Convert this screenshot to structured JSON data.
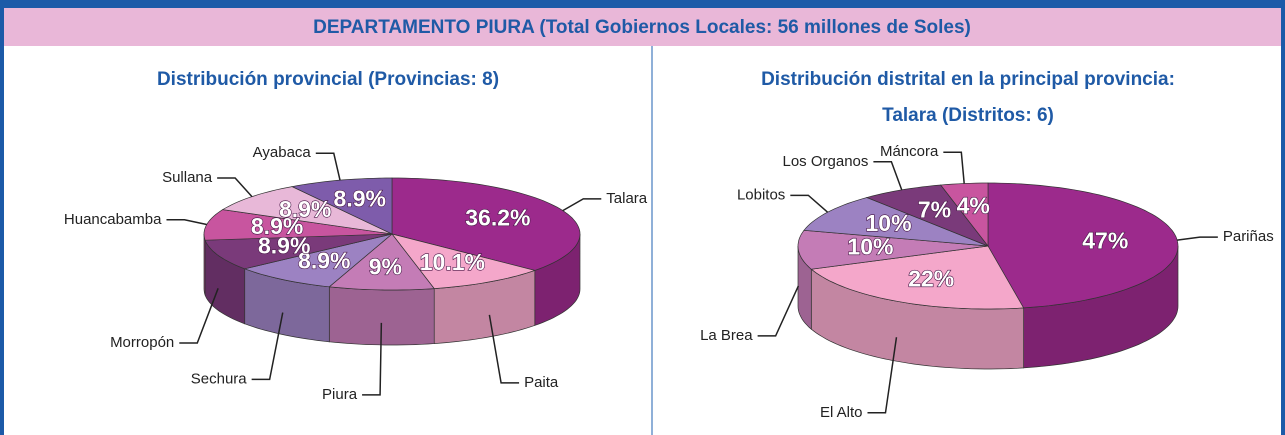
{
  "header": {
    "title": "DEPARTAMENTO PIURA (Total Gobiernos Locales: 56 millones de Soles)"
  },
  "chart_data": [
    {
      "type": "pie",
      "title": "Distribución provincial (Provincias: 8)",
      "categories": [
        "Talara",
        "Paita",
        "Piura",
        "Sechura",
        "Morropón",
        "Huancabamba",
        "Sullana",
        "Ayabaca"
      ],
      "values": [
        36.2,
        10.1,
        9,
        8.9,
        8.9,
        8.9,
        8.9,
        8.9
      ],
      "value_labels": [
        "36.2%",
        "10.1%",
        "9%",
        "8.9%",
        "8.9%",
        "8.9%",
        "8.9%",
        "8.9%"
      ],
      "colors": [
        "#9c2a8c",
        "#f4a7ca",
        "#c47cb6",
        "#9c82c2",
        "#7a3a7a",
        "#c8559f",
        "#e8b8d8",
        "#7e5cab"
      ]
    },
    {
      "type": "pie",
      "title": "Distribución distrital en la principal provincia:",
      "subtitle": "Talara (Distritos: 6)",
      "categories": [
        "Pariñas",
        "El Alto",
        "La Brea",
        "Lobitos",
        "Los Organos",
        "Máncora"
      ],
      "values": [
        47,
        22,
        10,
        10,
        7,
        4
      ],
      "value_labels": [
        "47%",
        "22%",
        "10%",
        "10%",
        "7%",
        "4%"
      ],
      "colors": [
        "#9c2a8c",
        "#f4a7ca",
        "#c47cb6",
        "#9c82c2",
        "#7a3a7a",
        "#c8559f"
      ]
    }
  ]
}
